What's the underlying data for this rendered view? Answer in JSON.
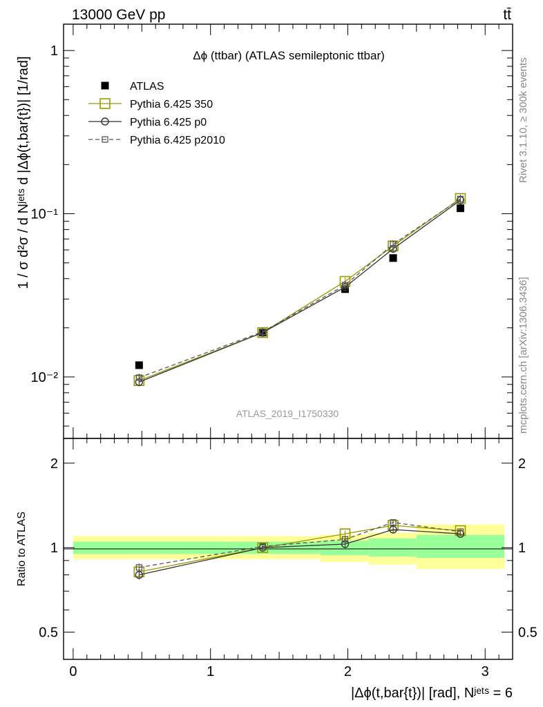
{
  "header": {
    "left": "13000 GeV pp",
    "right": "tt̄"
  },
  "side_labels": {
    "rivet": "Rivet 3.1.10, ≥ 300k events",
    "mcplots": "mcplots.cern.ch [arXiv:1306.3436]"
  },
  "colors": {
    "atlas": "#000000",
    "p350": "#999900",
    "p0": "#333333",
    "p2010": "#555555",
    "band_inner": "#99ff99",
    "band_outer": "#ffff99"
  },
  "chart_data": [
    {
      "type": "scatter",
      "title": "Δϕ (ttbar) (ATLAS semileptonic ttbar)",
      "ylabel": "1 / σ d²σ / d Nʲᵉᵗˢ d |Δϕ(t,bar{t})| [1/rad]",
      "yscale": "log",
      "ylim": [
        0.0042,
        1.45
      ],
      "xlim": [
        -0.07,
        3.2
      ],
      "yticks": [
        {
          "value": 1,
          "label": "1"
        },
        {
          "value": 0.1,
          "label": "10⁻¹"
        },
        {
          "value": 0.01,
          "label": "10⁻²"
        }
      ],
      "analysis_label": "ATLAS_2019_I1750330",
      "legend_position": "top-left",
      "x": [
        0.48,
        1.38,
        1.98,
        2.33,
        2.82
      ],
      "series": [
        {
          "name": "ATLAS",
          "marker": "filled-square",
          "values": [
            0.0118,
            0.0187,
            0.0345,
            0.0535,
            0.108
          ]
        },
        {
          "name": "Pythia 6.425 350",
          "marker": "open-square",
          "values": [
            0.0095,
            0.0187,
            0.0385,
            0.0635,
            0.124
          ]
        },
        {
          "name": "Pythia 6.425 p0",
          "marker": "open-circle",
          "values": [
            0.0093,
            0.0187,
            0.0355,
            0.061,
            0.121
          ]
        },
        {
          "name": "Pythia 6.425 p2010",
          "marker": "small-square-dashed",
          "values": [
            0.0099,
            0.0189,
            0.0365,
            0.065,
            0.123
          ]
        }
      ]
    },
    {
      "type": "line",
      "ylabel": "Ratio to ATLAS",
      "xlabel": "|Δϕ(t,bar{t})| [rad], Nʲᵉᵗˢ = 6",
      "yscale": "log",
      "ylim": [
        0.4,
        2.45
      ],
      "xlim": [
        -0.07,
        3.2
      ],
      "yticks": [
        {
          "value": 2,
          "label": "2"
        },
        {
          "value": 1,
          "label": "1"
        },
        {
          "value": 0.5,
          "label": "0.5"
        }
      ],
      "xticks": [
        {
          "value": 0,
          "label": "0"
        },
        {
          "value": 1,
          "label": "1"
        },
        {
          "value": 2,
          "label": "2"
        },
        {
          "value": 3,
          "label": "3"
        }
      ],
      "x": [
        0.48,
        1.38,
        1.98,
        2.33,
        2.82
      ],
      "bands": [
        {
          "x0": 0,
          "x1": 1.8,
          "inner": [
            0.95,
            1.05
          ],
          "outer": [
            0.91,
            1.1
          ]
        },
        {
          "x0": 1.8,
          "x1": 2.15,
          "inner": [
            0.94,
            1.06
          ],
          "outer": [
            0.89,
            1.11
          ]
        },
        {
          "x0": 2.15,
          "x1": 2.5,
          "inner": [
            0.93,
            1.08
          ],
          "outer": [
            0.87,
            1.13
          ]
        },
        {
          "x0": 2.5,
          "x1": 3.14,
          "inner": [
            0.92,
            1.11
          ],
          "outer": [
            0.84,
            1.21
          ]
        }
      ],
      "series": [
        {
          "name": "Pythia 6.425 350",
          "values": [
            0.82,
            1.0,
            1.12,
            1.2,
            1.15
          ],
          "errors": [
            0.03,
            0.02,
            0.03,
            0.03,
            0.02
          ]
        },
        {
          "name": "Pythia 6.425 p0",
          "values": [
            0.8,
            1.0,
            1.03,
            1.16,
            1.12
          ],
          "errors": [
            0.03,
            0.02,
            0.03,
            0.03,
            0.02
          ]
        },
        {
          "name": "Pythia 6.425 p2010",
          "values": [
            0.85,
            1.01,
            1.07,
            1.23,
            1.14
          ],
          "errors": [
            0.03,
            0.02,
            0.03,
            0.03,
            0.02
          ]
        }
      ]
    }
  ]
}
